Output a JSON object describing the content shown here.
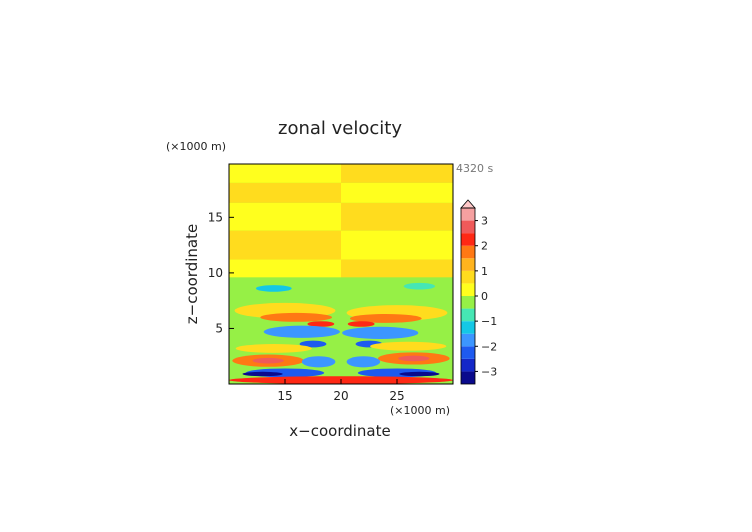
{
  "chart_data": {
    "type": "heatmap",
    "title": "zonal velocity",
    "xlabel": "x−coordinate",
    "ylabel": "z−coordinate",
    "x_unit": "(×1000 m)",
    "y_unit": "(×1000 m)",
    "time_label": "4320 s",
    "xlim": [
      10,
      30
    ],
    "ylim": [
      0,
      19.8
    ],
    "x_ticks": [
      15,
      20,
      25
    ],
    "y_ticks": [
      5,
      10,
      15
    ],
    "colorbar": {
      "levels": [
        -3.5,
        -3,
        -2.5,
        -2,
        -1.5,
        -1,
        -0.5,
        0,
        0.5,
        1,
        1.5,
        2,
        2.5,
        3,
        3.5
      ],
      "colors": [
        "#0a0a8c",
        "#1428c8",
        "#1e5af0",
        "#3c96ff",
        "#14c8e6",
        "#46e6b4",
        "#96f046",
        "#ffff1e",
        "#ffdc1e",
        "#ffb41e",
        "#ff7814",
        "#ff2814",
        "#f05a5a",
        "#f5a0a0"
      ],
      "tick_labels": [
        "3",
        "2",
        "1",
        "0",
        "−1",
        "−2",
        "−3"
      ],
      "tick_values": [
        3,
        2,
        1,
        0,
        -1,
        -2,
        -3
      ],
      "extend": "max",
      "extend_color": "#ffc8c8"
    }
  }
}
